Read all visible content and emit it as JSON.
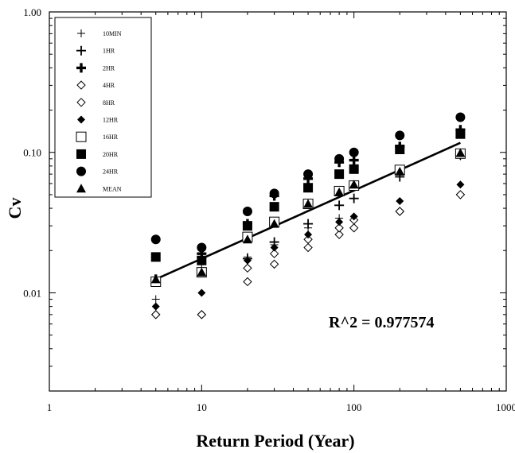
{
  "chart_data": {
    "type": "scatter",
    "xscale": "log",
    "yscale": "log",
    "xlim": [
      1,
      1000
    ],
    "ylim": [
      0.002,
      1.0
    ],
    "xlabel": "Return Period (Year)",
    "ylabel": "Cv",
    "x_tick_labels": [
      "1",
      "10",
      "100",
      "1000"
    ],
    "y_tick_labels": [
      "0.01",
      "0.10",
      "1.00"
    ],
    "annotation": "R^2 = 0.977574",
    "grid": false,
    "legend_position": "top-left",
    "x": [
      5,
      10,
      20,
      30,
      50,
      80,
      100,
      200,
      500
    ],
    "series": [
      {
        "name": "10MIN",
        "marker": "thin-plus",
        "values": [
          0.009,
          0.016,
          0.018,
          0.022,
          0.029,
          0.034,
          0.056,
          0.071,
          0.094
        ]
      },
      {
        "name": "1HR",
        "marker": "plus",
        "values": [
          0.0125,
          0.018,
          0.0175,
          0.023,
          0.031,
          0.042,
          0.047,
          0.067,
          0.096
        ]
      },
      {
        "name": "2HR",
        "marker": "bold-plus",
        "values": [
          0.0125,
          0.019,
          0.031,
          0.049,
          0.065,
          0.085,
          0.088,
          0.11,
          0.145
        ]
      },
      {
        "name": "4HR",
        "marker": "open-diamond",
        "values": [
          0.007,
          0.007,
          0.012,
          0.016,
          0.021,
          0.026,
          0.029,
          0.038,
          0.05
        ]
      },
      {
        "name": "8HR",
        "marker": "open-diamond",
        "values": [
          0.007,
          0.007,
          0.015,
          0.019,
          0.024,
          0.029,
          0.033,
          0.038,
          0.05
        ]
      },
      {
        "name": "12HR",
        "marker": "filled-diamond",
        "values": [
          0.008,
          0.01,
          0.017,
          0.021,
          0.026,
          0.032,
          0.035,
          0.045,
          0.059
        ]
      },
      {
        "name": "16HR",
        "marker": "open-square",
        "values": [
          0.012,
          0.014,
          0.025,
          0.032,
          0.043,
          0.053,
          0.058,
          0.075,
          0.098
        ]
      },
      {
        "name": "20HR",
        "marker": "filled-square",
        "values": [
          0.018,
          0.017,
          0.03,
          0.041,
          0.056,
          0.07,
          0.076,
          0.105,
          0.135
        ]
      },
      {
        "name": "24HR",
        "marker": "filled-circle",
        "values": [
          0.024,
          0.021,
          0.038,
          0.051,
          0.07,
          0.09,
          0.1,
          0.132,
          0.178
        ]
      },
      {
        "name": "MEAN",
        "marker": "filled-triangle",
        "values": [
          0.0125,
          0.014,
          0.024,
          0.031,
          0.043,
          0.052,
          0.059,
          0.073,
          0.099
        ]
      }
    ],
    "fit_line": {
      "x": [
        5,
        500
      ],
      "y": [
        0.0125,
        0.117
      ]
    }
  }
}
